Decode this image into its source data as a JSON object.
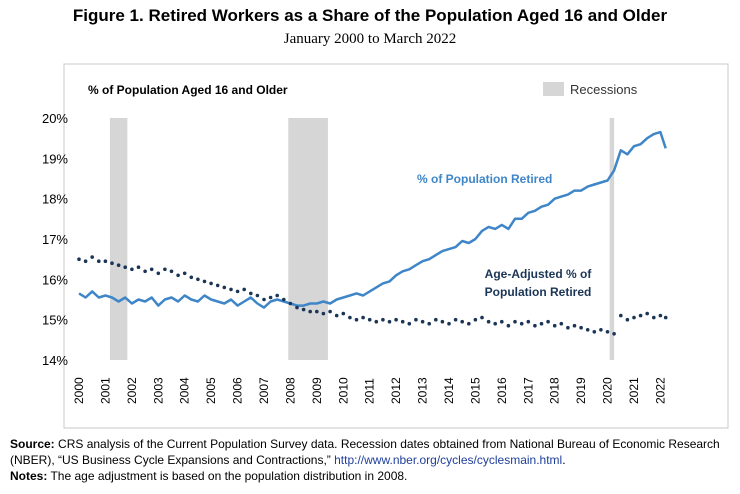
{
  "figure": {
    "title": "Figure 1. Retired Workers as a Share of the Population Aged 16 and Older",
    "subtitle": "January 2000 to March 2022"
  },
  "colors": {
    "retired_line": "#3f86c8",
    "adjusted_dots": "#1b3557",
    "recession": "#d6d6d6",
    "frame": "#c8c8c8"
  },
  "chart_data": {
    "type": "line",
    "ylabel": "% of Population Aged 16 and Older",
    "ylim": [
      14,
      20
    ],
    "y_ticks": [
      14,
      15,
      16,
      17,
      18,
      19,
      20
    ],
    "y_tick_labels": [
      "14%",
      "15%",
      "16%",
      "17%",
      "18%",
      "19%",
      "20%"
    ],
    "x_range": [
      2000,
      2022.25
    ],
    "x_ticks": [
      2000,
      2001,
      2002,
      2003,
      2004,
      2005,
      2006,
      2007,
      2008,
      2009,
      2010,
      2011,
      2012,
      2013,
      2014,
      2015,
      2016,
      2017,
      2018,
      2019,
      2020,
      2021,
      2022
    ],
    "x_tick_labels": [
      "2000",
      "2001",
      "2002",
      "2003",
      "2004",
      "2005",
      "2006",
      "2007",
      "2008",
      "2009",
      "2010",
      "2011",
      "2012",
      "2013",
      "2014",
      "2015",
      "2016",
      "2017",
      "2018",
      "2019",
      "2020",
      "2021",
      "2022"
    ],
    "legend_label": "Recessions",
    "recessions": [
      [
        2001.17,
        2001.83
      ],
      [
        2007.92,
        2009.42
      ],
      [
        2020.08,
        2020.25
      ]
    ],
    "series": [
      {
        "name": "% of Population Retired",
        "style": "line",
        "annotation": "% of Population Retired",
        "x": [
          2000.0,
          2000.25,
          2000.5,
          2000.75,
          2001.0,
          2001.25,
          2001.5,
          2001.75,
          2002.0,
          2002.25,
          2002.5,
          2002.75,
          2003.0,
          2003.25,
          2003.5,
          2003.75,
          2004.0,
          2004.25,
          2004.5,
          2004.75,
          2005.0,
          2005.25,
          2005.5,
          2005.75,
          2006.0,
          2006.25,
          2006.5,
          2006.75,
          2007.0,
          2007.25,
          2007.5,
          2007.75,
          2008.0,
          2008.25,
          2008.5,
          2008.75,
          2009.0,
          2009.25,
          2009.5,
          2009.75,
          2010.0,
          2010.25,
          2010.5,
          2010.75,
          2011.0,
          2011.25,
          2011.5,
          2011.75,
          2012.0,
          2012.25,
          2012.5,
          2012.75,
          2013.0,
          2013.25,
          2013.5,
          2013.75,
          2014.0,
          2014.25,
          2014.5,
          2014.75,
          2015.0,
          2015.25,
          2015.5,
          2015.75,
          2016.0,
          2016.25,
          2016.5,
          2016.75,
          2017.0,
          2017.25,
          2017.5,
          2017.75,
          2018.0,
          2018.25,
          2018.5,
          2018.75,
          2019.0,
          2019.25,
          2019.5,
          2019.75,
          2020.0,
          2020.25,
          2020.5,
          2020.75,
          2021.0,
          2021.25,
          2021.5,
          2021.75,
          2022.0,
          2022.2
        ],
        "values": [
          15.65,
          15.55,
          15.7,
          15.55,
          15.6,
          15.55,
          15.45,
          15.55,
          15.4,
          15.5,
          15.45,
          15.55,
          15.35,
          15.5,
          15.55,
          15.45,
          15.6,
          15.5,
          15.45,
          15.6,
          15.5,
          15.45,
          15.4,
          15.5,
          15.35,
          15.45,
          15.55,
          15.4,
          15.3,
          15.45,
          15.5,
          15.45,
          15.4,
          15.35,
          15.35,
          15.4,
          15.4,
          15.45,
          15.4,
          15.5,
          15.55,
          15.6,
          15.65,
          15.6,
          15.7,
          15.8,
          15.9,
          15.95,
          16.1,
          16.2,
          16.25,
          16.35,
          16.45,
          16.5,
          16.6,
          16.7,
          16.75,
          16.8,
          16.95,
          16.9,
          17.0,
          17.2,
          17.3,
          17.25,
          17.35,
          17.25,
          17.5,
          17.5,
          17.65,
          17.7,
          17.8,
          17.85,
          18.0,
          18.05,
          18.1,
          18.2,
          18.2,
          18.3,
          18.35,
          18.4,
          18.45,
          18.7,
          19.2,
          19.1,
          19.3,
          19.35,
          19.5,
          19.6,
          19.65,
          19.25
        ]
      },
      {
        "name": "Age-Adjusted % of Population Retired",
        "style": "dots",
        "annotation_lines": [
          "Age-Adjusted % of",
          "Population Retired"
        ],
        "x": [
          2000.0,
          2000.25,
          2000.5,
          2000.75,
          2001.0,
          2001.25,
          2001.5,
          2001.75,
          2002.0,
          2002.25,
          2002.5,
          2002.75,
          2003.0,
          2003.25,
          2003.5,
          2003.75,
          2004.0,
          2004.25,
          2004.5,
          2004.75,
          2005.0,
          2005.25,
          2005.5,
          2005.75,
          2006.0,
          2006.25,
          2006.5,
          2006.75,
          2007.0,
          2007.25,
          2007.5,
          2007.75,
          2008.0,
          2008.25,
          2008.5,
          2008.75,
          2009.0,
          2009.25,
          2009.5,
          2009.75,
          2010.0,
          2010.25,
          2010.5,
          2010.75,
          2011.0,
          2011.25,
          2011.5,
          2011.75,
          2012.0,
          2012.25,
          2012.5,
          2012.75,
          2013.0,
          2013.25,
          2013.5,
          2013.75,
          2014.0,
          2014.25,
          2014.5,
          2014.75,
          2015.0,
          2015.25,
          2015.5,
          2015.75,
          2016.0,
          2016.25,
          2016.5,
          2016.75,
          2017.0,
          2017.25,
          2017.5,
          2017.75,
          2018.0,
          2018.25,
          2018.5,
          2018.75,
          2019.0,
          2019.25,
          2019.5,
          2019.75,
          2020.0,
          2020.25,
          2020.5,
          2020.75,
          2021.0,
          2021.25,
          2021.5,
          2021.75,
          2022.0,
          2022.2
        ],
        "values": [
          16.5,
          16.45,
          16.55,
          16.45,
          16.45,
          16.4,
          16.35,
          16.3,
          16.25,
          16.3,
          16.2,
          16.25,
          16.15,
          16.25,
          16.2,
          16.1,
          16.15,
          16.05,
          16.0,
          15.95,
          15.9,
          15.85,
          15.8,
          15.75,
          15.7,
          15.75,
          15.65,
          15.6,
          15.5,
          15.55,
          15.6,
          15.5,
          15.4,
          15.3,
          15.25,
          15.2,
          15.2,
          15.15,
          15.2,
          15.1,
          15.15,
          15.05,
          15.0,
          15.05,
          15.0,
          14.95,
          15.0,
          14.95,
          15.0,
          14.95,
          14.9,
          15.0,
          14.95,
          14.9,
          15.0,
          14.95,
          14.9,
          15.0,
          14.95,
          14.9,
          15.0,
          15.05,
          14.95,
          14.9,
          14.95,
          14.85,
          14.95,
          14.9,
          14.95,
          14.85,
          14.9,
          14.95,
          14.85,
          14.9,
          14.8,
          14.85,
          14.8,
          14.75,
          14.7,
          14.75,
          14.7,
          14.65,
          15.1,
          15.0,
          15.05,
          15.1,
          15.15,
          15.05,
          15.1,
          15.05
        ]
      }
    ]
  },
  "notes": {
    "source_label": "Source:",
    "source_text": " CRS analysis of the Current Population Survey data. Recession dates obtained from National Bureau of Economic Research (NBER), “US Business Cycle Expansions and Contractions,” ",
    "source_url": "http://www.nber.org/cycles/cyclesmain.html",
    "source_end": ".",
    "notes_label": "Notes:",
    "notes_text": " The age adjustment is based on the population distribution in 2008."
  }
}
